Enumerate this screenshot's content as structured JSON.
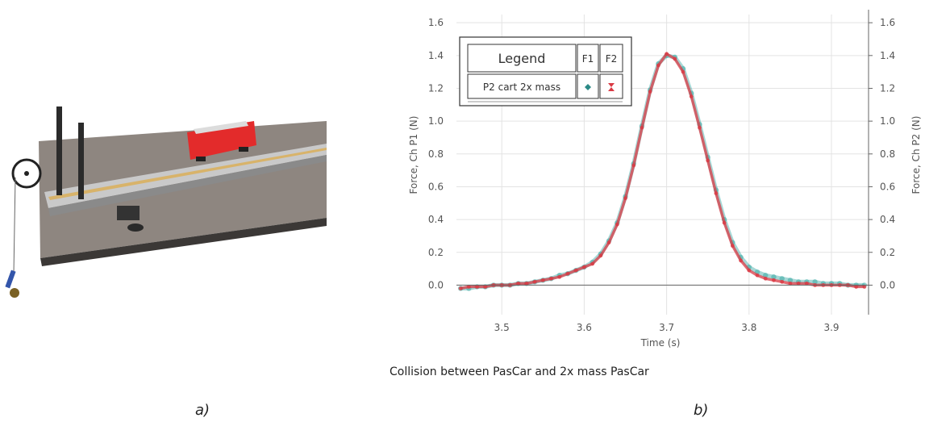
{
  "panel_labels": {
    "a": "a)",
    "b": "b)"
  },
  "photo": {
    "cart_color": "#e32b2b",
    "track_color": "#b8b8b8",
    "table_color": "#8e8680"
  },
  "chart_data": {
    "type": "scatter",
    "caption": "Collision between PasCar and 2x mass PasCar",
    "xlabel": "Time (s)",
    "ylabel": "Force, Ch P1 (N)",
    "ylabel_right": "Force, Ch P2 (N)",
    "xlim": [
      3.445,
      3.945
    ],
    "ylim": [
      -0.18,
      1.65
    ],
    "xticks": [
      "3.5",
      "3.6",
      "3.7",
      "3.8",
      "3.9"
    ],
    "yticks": [
      "0.0",
      "0.2",
      "0.4",
      "0.6",
      "0.8",
      "1.0",
      "1.2",
      "1.4",
      "1.6"
    ],
    "grid": true,
    "legend": {
      "placement": "top-left",
      "title": "Legend",
      "col1": "F1",
      "col2": "F2",
      "row": "P2 cart 2x mass"
    },
    "series": [
      {
        "name": "F1",
        "color": "#3aa9a4",
        "x": [
          3.45,
          3.46,
          3.47,
          3.48,
          3.49,
          3.5,
          3.51,
          3.52,
          3.53,
          3.54,
          3.55,
          3.56,
          3.57,
          3.58,
          3.59,
          3.6,
          3.61,
          3.62,
          3.63,
          3.64,
          3.65,
          3.66,
          3.67,
          3.68,
          3.69,
          3.7,
          3.71,
          3.72,
          3.73,
          3.74,
          3.75,
          3.76,
          3.77,
          3.78,
          3.79,
          3.8,
          3.81,
          3.82,
          3.83,
          3.84,
          3.85,
          3.86,
          3.87,
          3.88,
          3.89,
          3.9,
          3.91,
          3.92,
          3.93,
          3.94
        ],
        "y": [
          -0.02,
          -0.02,
          -0.01,
          -0.01,
          0.0,
          0.0,
          0.0,
          0.01,
          0.01,
          0.02,
          0.03,
          0.04,
          0.06,
          0.07,
          0.09,
          0.11,
          0.14,
          0.19,
          0.27,
          0.38,
          0.54,
          0.74,
          0.97,
          1.19,
          1.35,
          1.4,
          1.39,
          1.32,
          1.17,
          0.98,
          0.78,
          0.58,
          0.4,
          0.26,
          0.17,
          0.11,
          0.08,
          0.06,
          0.05,
          0.04,
          0.03,
          0.02,
          0.02,
          0.02,
          0.01,
          0.01,
          0.01,
          0.0,
          0.0,
          0.0
        ]
      },
      {
        "name": "F2",
        "color": "#d93a44",
        "x": [
          3.45,
          3.46,
          3.47,
          3.48,
          3.49,
          3.5,
          3.51,
          3.52,
          3.53,
          3.54,
          3.55,
          3.56,
          3.57,
          3.58,
          3.59,
          3.6,
          3.61,
          3.62,
          3.63,
          3.64,
          3.65,
          3.66,
          3.67,
          3.68,
          3.69,
          3.7,
          3.71,
          3.72,
          3.73,
          3.74,
          3.75,
          3.76,
          3.77,
          3.78,
          3.79,
          3.8,
          3.81,
          3.82,
          3.83,
          3.84,
          3.85,
          3.86,
          3.87,
          3.88,
          3.89,
          3.9,
          3.91,
          3.92,
          3.93,
          3.94
        ],
        "y": [
          -0.02,
          -0.01,
          -0.01,
          -0.01,
          0.0,
          0.0,
          0.0,
          0.01,
          0.01,
          0.02,
          0.03,
          0.04,
          0.05,
          0.07,
          0.09,
          0.11,
          0.13,
          0.18,
          0.26,
          0.37,
          0.53,
          0.73,
          0.96,
          1.18,
          1.34,
          1.41,
          1.38,
          1.3,
          1.15,
          0.96,
          0.76,
          0.56,
          0.38,
          0.24,
          0.15,
          0.09,
          0.06,
          0.04,
          0.03,
          0.02,
          0.01,
          0.01,
          0.01,
          0.0,
          0.0,
          0.0,
          0.0,
          0.0,
          -0.01,
          -0.01
        ]
      }
    ]
  }
}
